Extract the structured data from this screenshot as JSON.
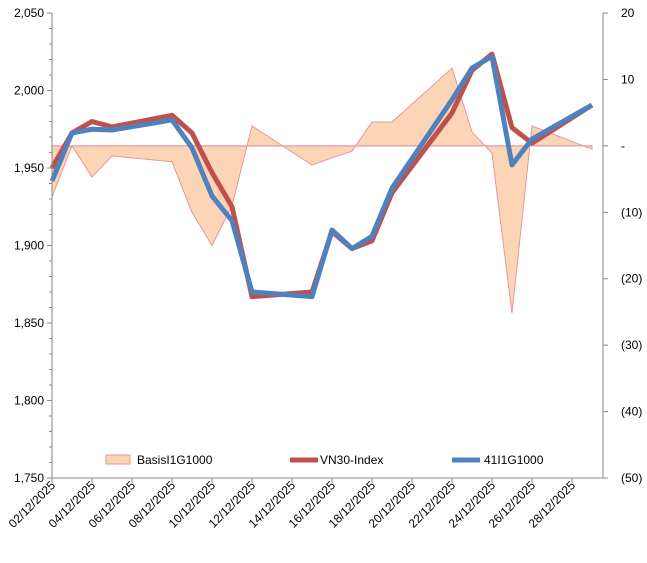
{
  "chart_data": {
    "type": "line",
    "x": [
      "02/12/2025",
      "03/12/2025",
      "04/12/2025",
      "05/12/2025",
      "08/12/2025",
      "09/12/2025",
      "10/12/2025",
      "11/12/2025",
      "12/12/2025",
      "15/12/2025",
      "16/12/2025",
      "17/12/2025",
      "18/12/2025",
      "19/12/2025",
      "22/12/2025",
      "23/12/2025",
      "24/12/2025",
      "25/12/2025",
      "26/12/2025",
      "29/12/2025"
    ],
    "x_tick_labels": [
      "02/12/2025",
      "04/12/2025",
      "06/12/2025",
      "08/12/2025",
      "10/12/2025",
      "12/12/2025",
      "14/12/2025",
      "16/12/2025",
      "18/12/2025",
      "20/12/2025",
      "22/12/2025",
      "24/12/2025",
      "26/12/2025",
      "28/12/2025"
    ],
    "series": [
      {
        "name": "BasisI1G1000",
        "type": "area",
        "axis": "right",
        "color": "#fbd5b5",
        "values": [
          -7.7,
          0,
          -4.7,
          -1.5,
          -2.4,
          -10,
          -15,
          -9,
          3,
          -2.9,
          -1.8,
          -0.8,
          3.6,
          3.6,
          11.7,
          2.1,
          -1.1,
          -25.2,
          3,
          -0.5
        ]
      },
      {
        "name": "VN30-Index",
        "type": "line",
        "axis": "left",
        "color": "#c0504d",
        "values": [
          1950,
          1972.6,
          1980,
          1976.5,
          1984,
          1972.6,
          1947,
          1925,
          1867,
          1870,
          1909,
          1898,
          1903,
          1934,
          1985.5,
          2013,
          2023.5,
          1976,
          1966,
          1990.6
        ]
      },
      {
        "name": "41I1G1000",
        "type": "line",
        "axis": "left",
        "color": "#4f81bd",
        "values": [
          1941.6,
          1972.6,
          1975,
          1974.5,
          1981,
          1963,
          1932,
          1916,
          1870,
          1867,
          1910,
          1898,
          1906,
          1937,
          1994,
          2014.5,
          2022,
          1952,
          1968.7,
          1990.6
        ]
      }
    ],
    "y_left": {
      "ylim": [
        1750,
        2050
      ],
      "ticks": [
        "1,750",
        "1,800",
        "1,850",
        "1,900",
        "1,950",
        "2,000",
        "2,050"
      ]
    },
    "y_right": {
      "ylim": [
        -50,
        20
      ],
      "ticks": [
        "(50)",
        "(40)",
        "(30)",
        "(20)",
        "(10)",
        "-",
        "10",
        "20"
      ]
    },
    "legend": {
      "placement": "bottom-inside",
      "labels": [
        "BasisI1G1000",
        "VN30-Index",
        "41I1G1000"
      ]
    },
    "grid": false
  }
}
